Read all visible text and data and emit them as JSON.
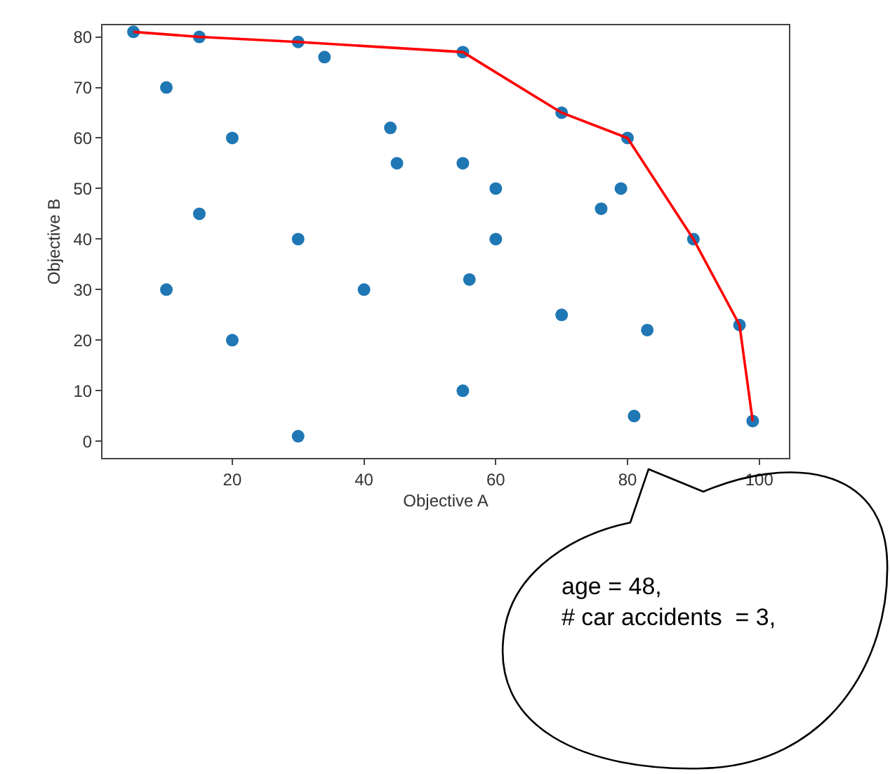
{
  "chart_data": {
    "type": "scatter",
    "xlabel": "Objective A",
    "ylabel": "Objective B",
    "xlim": [
      0.3,
      104.5
    ],
    "ylim": [
      -3.3,
      82.3
    ],
    "xticks": [
      20,
      40,
      60,
      80,
      100
    ],
    "yticks": [
      0,
      10,
      20,
      30,
      40,
      50,
      60,
      70,
      80
    ],
    "series": [
      {
        "color": "#1f77b4",
        "marker": "circle",
        "x": [
          5,
          15,
          30,
          34,
          10,
          20,
          44,
          45,
          15,
          30,
          10,
          40,
          20,
          30,
          55,
          70,
          80,
          55,
          60,
          79,
          76,
          60,
          90,
          56,
          70,
          83,
          97,
          55,
          81,
          99
        ],
        "values": [
          81,
          80,
          79,
          76,
          70,
          60,
          62,
          55,
          45,
          40,
          30,
          30,
          20,
          1,
          77,
          65,
          60,
          55,
          50,
          50,
          46,
          40,
          40,
          32,
          25,
          22,
          23,
          10,
          5,
          4
        ]
      },
      {
        "type": "line",
        "color": "#ff0000",
        "marker": "none",
        "line_style": "solid",
        "x": [
          5,
          15,
          30,
          55,
          70,
          80,
          90,
          97,
          99
        ],
        "values": [
          81,
          80,
          79,
          77,
          65,
          60,
          40,
          23,
          4
        ]
      }
    ],
    "annotations": [
      "age = 48,\n# car accidents  = 3,"
    ]
  }
}
